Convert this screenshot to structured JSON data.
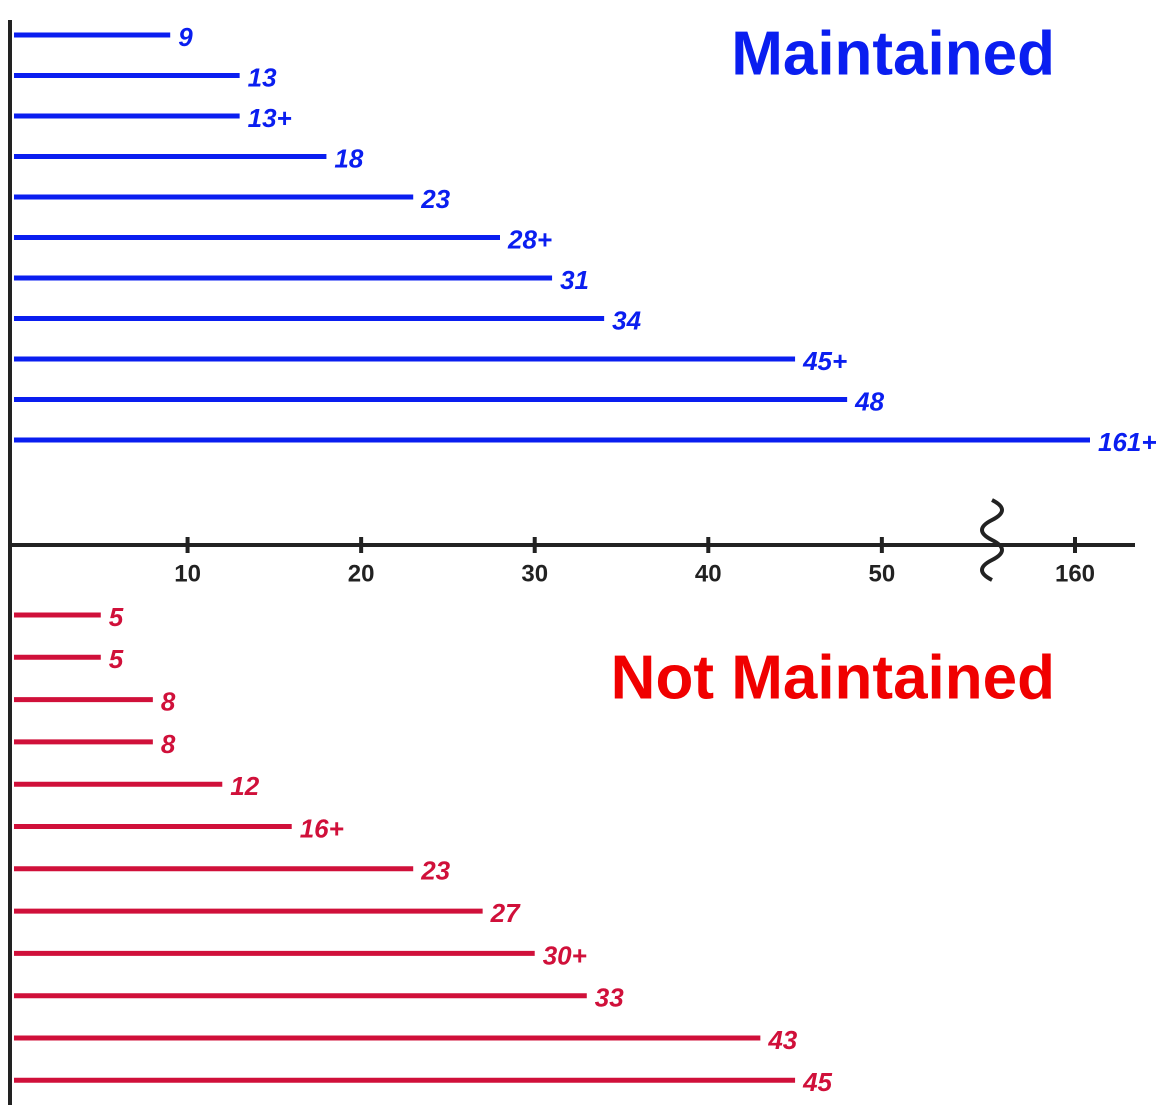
{
  "chart_data": {
    "type": "timeline",
    "series": [
      {
        "name": "Maintained",
        "color": "#0a1ef0",
        "values": [
          9,
          13,
          13,
          18,
          23,
          28,
          31,
          34,
          45,
          48,
          161
        ],
        "value_labels": [
          "9",
          "13",
          "13+",
          "18",
          "23",
          "28+",
          "31",
          "34",
          "45+",
          "48",
          "161+"
        ]
      },
      {
        "name": "Not Maintained",
        "color": "#d0103a",
        "values": [
          5,
          5,
          8,
          8,
          12,
          16,
          23,
          27,
          30,
          33,
          43,
          45
        ],
        "value_labels": [
          "5",
          "5",
          "8",
          "8",
          "12",
          "16+",
          "23",
          "27",
          "30+",
          "33",
          "43",
          "45"
        ]
      }
    ],
    "xlim": [
      0,
      165
    ],
    "xbreak": [
      56,
      155
    ],
    "xticks": [
      10,
      20,
      30,
      40,
      50,
      160
    ]
  }
}
